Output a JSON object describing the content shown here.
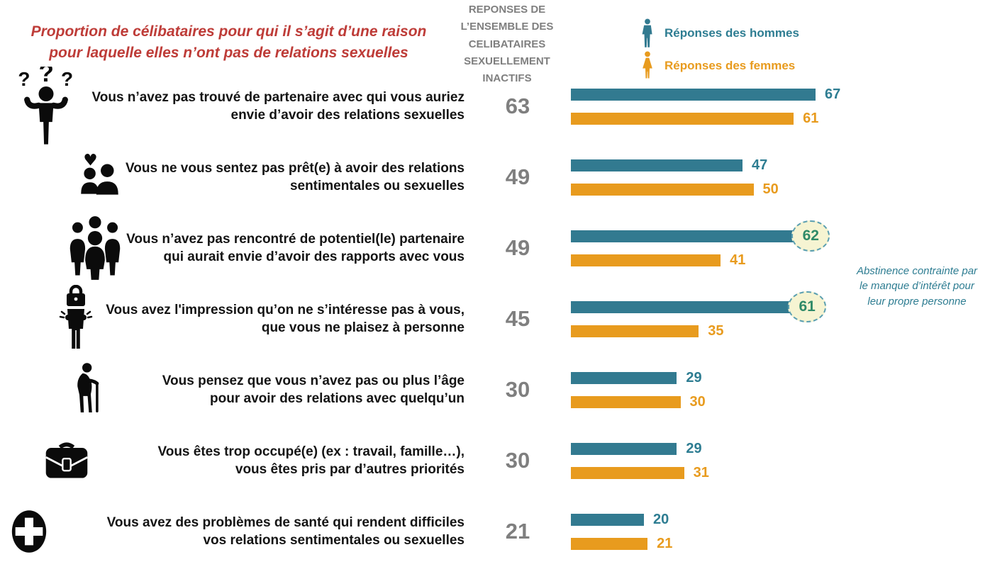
{
  "title": {
    "lines": [
      "Proportion de célibataires pour qui il s’agit d’une raison",
      "pour laquelle elles n’ont pas de relations sexuelles"
    ],
    "color": "#BE3C38"
  },
  "column_header": {
    "lines": [
      "REPONSES DE",
      "L’ENSEMBLE DES",
      "CELIBATAIRES",
      "SEXUELLEMENT",
      "INACTIFS"
    ],
    "color": "#7F7F7F"
  },
  "legend": {
    "men": {
      "label": "Réponses des hommes",
      "color": "#327A90",
      "icon": "male-icon"
    },
    "women": {
      "label": "Réponses des femmes",
      "color": "#E89B1E",
      "icon": "female-icon"
    }
  },
  "annotation": {
    "lines": [
      "Abstinence contrainte par",
      "le manque d’intérêt pour",
      "leur propre personne"
    ],
    "color": "#2E7D92"
  },
  "badge_style": {
    "fill": "#F6F4D2",
    "border": "#5B9FB0",
    "text_color": "#2F8A68"
  },
  "chart_data": {
    "type": "bar",
    "orientation": "horizontal",
    "value_unit": "%",
    "xlim": [
      0,
      70
    ],
    "grid": false,
    "legend_position": "top-right",
    "series_names": [
      "Ensemble des célibataires sexuellement inactifs",
      "Réponses des hommes",
      "Réponses des femmes"
    ],
    "rows": [
      {
        "icon": "question-person",
        "label_lines": [
          "Vous n’avez pas trouvé de partenaire avec qui vous auriez",
          "envie d’avoir des relations sexuelles"
        ],
        "total": 63,
        "men": 67,
        "women": 61,
        "men_badge": false
      },
      {
        "icon": "couple-heart",
        "label_lines": [
          "Vous ne vous sentez pas prêt(e) à avoir des relations",
          "sentimentales ou sexuelles"
        ],
        "total": 49,
        "men": 47,
        "women": 50,
        "men_badge": false
      },
      {
        "icon": "crowd",
        "label_lines": [
          "Vous n’avez pas rencontré de potentiel(le) partenaire",
          "qui aurait envie d’avoir des rapports avec vous"
        ],
        "total": 49,
        "men": 62,
        "women": 41,
        "men_badge": true
      },
      {
        "icon": "locked-person",
        "label_lines": [
          "Vous avez l'impression qu’on ne s’intéresse pas à vous,",
          "que vous ne plaisez à personne"
        ],
        "total": 45,
        "men": 61,
        "women": 35,
        "men_badge": true
      },
      {
        "icon": "elderly",
        "label_lines": [
          "Vous pensez que vous n’avez pas ou plus l’âge",
          "pour avoir des relations avec quelqu’un"
        ],
        "total": 30,
        "men": 29,
        "women": 30,
        "men_badge": false
      },
      {
        "icon": "briefcase",
        "label_lines": [
          "Vous êtes trop occupé(e) (ex : travail, famille…),",
          "vous êtes pris par d’autres priorités"
        ],
        "total": 30,
        "men": 29,
        "women": 31,
        "men_badge": false
      },
      {
        "icon": "medical",
        "label_lines": [
          "Vous avez des problèmes de santé qui rendent difficiles",
          "vos relations sentimentales ou sexuelles"
        ],
        "total": 21,
        "men": 20,
        "women": 21,
        "men_badge": false
      }
    ]
  }
}
